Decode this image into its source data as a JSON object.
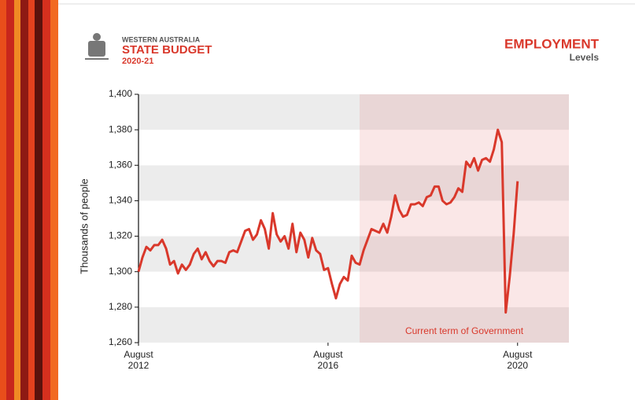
{
  "header": {
    "org": "WESTERN AUSTRALIA",
    "title": "STATE BUDGET",
    "year": "2020-21",
    "section": "EMPLOYMENT",
    "subsection": "Levels"
  },
  "chart_data": {
    "type": "line",
    "y_label": "Thousands of people",
    "color": "#d9382b",
    "x": [
      "2012-08",
      "2012-09",
      "2012-10",
      "2012-11",
      "2012-12",
      "2013-01",
      "2013-02",
      "2013-03",
      "2013-04",
      "2013-05",
      "2013-06",
      "2013-07",
      "2013-08",
      "2013-09",
      "2013-10",
      "2013-11",
      "2013-12",
      "2014-01",
      "2014-02",
      "2014-03",
      "2014-04",
      "2014-05",
      "2014-06",
      "2014-07",
      "2014-08",
      "2014-09",
      "2014-10",
      "2014-11",
      "2014-12",
      "2015-01",
      "2015-02",
      "2015-03",
      "2015-04",
      "2015-05",
      "2015-06",
      "2015-07",
      "2015-08",
      "2015-09",
      "2015-10",
      "2015-11",
      "2015-12",
      "2016-01",
      "2016-02",
      "2016-03",
      "2016-04",
      "2016-05",
      "2016-06",
      "2016-07",
      "2016-08",
      "2016-09",
      "2016-10",
      "2016-11",
      "2016-12",
      "2017-01",
      "2017-02",
      "2017-03",
      "2017-04",
      "2017-05",
      "2017-06",
      "2017-07",
      "2017-08",
      "2017-09",
      "2017-10",
      "2017-11",
      "2017-12",
      "2018-01",
      "2018-02",
      "2018-03",
      "2018-04",
      "2018-05",
      "2018-06",
      "2018-07",
      "2018-08",
      "2018-09",
      "2018-10",
      "2018-11",
      "2018-12",
      "2019-01",
      "2019-02",
      "2019-03",
      "2019-04",
      "2019-05",
      "2019-06",
      "2019-07",
      "2019-08",
      "2019-09",
      "2019-10",
      "2019-11",
      "2019-12",
      "2020-01",
      "2020-02",
      "2020-03",
      "2020-04",
      "2020-05",
      "2020-06",
      "2020-07",
      "2020-08"
    ],
    "values": [
      1300,
      1308,
      1314,
      1312,
      1315,
      1315,
      1318,
      1313,
      1304,
      1306,
      1299,
      1304,
      1301,
      1304,
      1310,
      1313,
      1307,
      1311,
      1306,
      1303,
      1306,
      1306,
      1305,
      1311,
      1312,
      1311,
      1317,
      1323,
      1324,
      1318,
      1321,
      1329,
      1324,
      1313,
      1333,
      1321,
      1317,
      1320,
      1313,
      1327,
      1311,
      1322,
      1318,
      1308,
      1319,
      1312,
      1310,
      1301,
      1302,
      1293,
      1285,
      1293,
      1297,
      1295,
      1309,
      1305,
      1304,
      1312,
      1318,
      1324,
      1323,
      1322,
      1327,
      1322,
      1331,
      1343,
      1335,
      1331,
      1332,
      1338,
      1338,
      1339,
      1337,
      1342,
      1343,
      1348,
      1348,
      1340,
      1338,
      1339,
      1342,
      1347,
      1345,
      1362,
      1359,
      1364,
      1357,
      1363,
      1364,
      1362,
      1369,
      1380,
      1373,
      1277,
      1297,
      1321,
      1351
    ],
    "xlim": [
      "2012-08",
      "2021-09"
    ],
    "xticks": [
      {
        "value": "2012-08",
        "label": "August 2012"
      },
      {
        "value": "2016-08",
        "label": "August 2016"
      },
      {
        "value": "2020-08",
        "label": "August 2020"
      }
    ],
    "ylim": [
      1260,
      1400
    ],
    "yticks": [
      {
        "value": 1260,
        "label": "1,260"
      },
      {
        "value": 1280,
        "label": "1,280"
      },
      {
        "value": 1300,
        "label": "1,300"
      },
      {
        "value": 1320,
        "label": "1,320"
      },
      {
        "value": 1340,
        "label": "1,340"
      },
      {
        "value": 1360,
        "label": "1,360"
      },
      {
        "value": 1380,
        "label": "1,380"
      },
      {
        "value": 1400,
        "label": "1,400"
      }
    ],
    "highlight": {
      "x": [
        "2017-04",
        "2021-09"
      ],
      "label": "Current term of Government"
    }
  }
}
